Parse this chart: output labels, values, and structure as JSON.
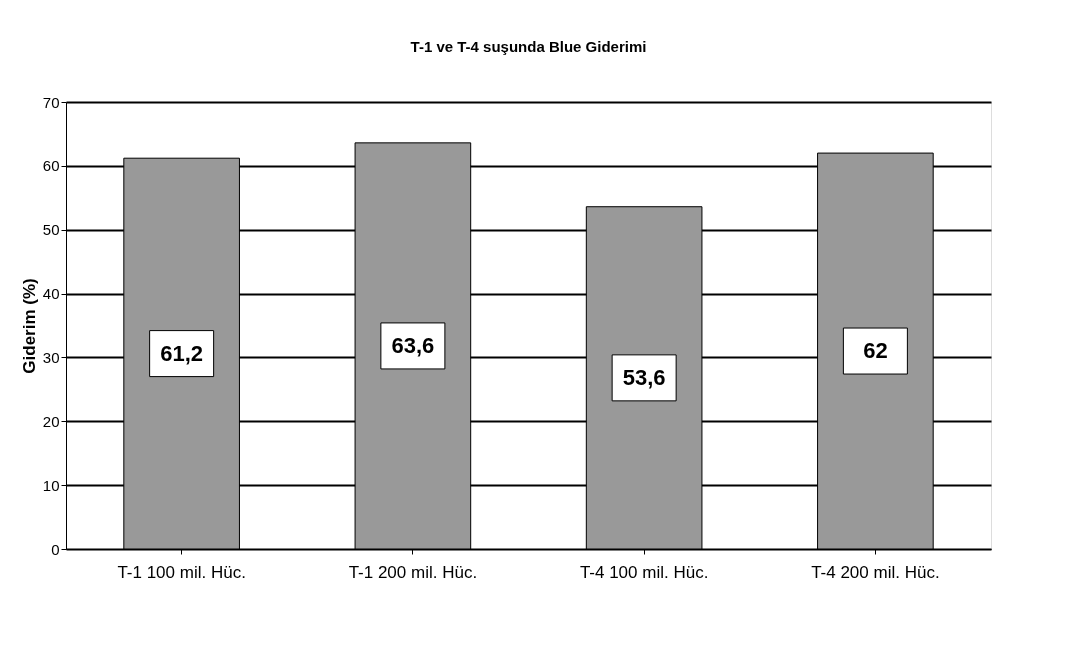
{
  "chart_data": {
    "type": "bar",
    "title": "T-1 ve T-4 suşunda Blue Giderimi",
    "ylabel": "Giderim (%)",
    "categories": [
      "T-1 100 mil. Hüc.",
      "T-1 200 mil. Hüc.",
      "T-4 100 mil. Hüc.",
      "T-4 200 mil. Hüc."
    ],
    "values": [
      61.2,
      63.6,
      53.6,
      62
    ],
    "value_labels": [
      "61,2",
      "63,6",
      "53,6",
      "62"
    ],
    "color": "#999999",
    "ylim": [
      0,
      70
    ],
    "yticks": [
      0,
      10,
      20,
      30,
      40,
      50,
      60,
      70
    ],
    "grid": "y"
  }
}
